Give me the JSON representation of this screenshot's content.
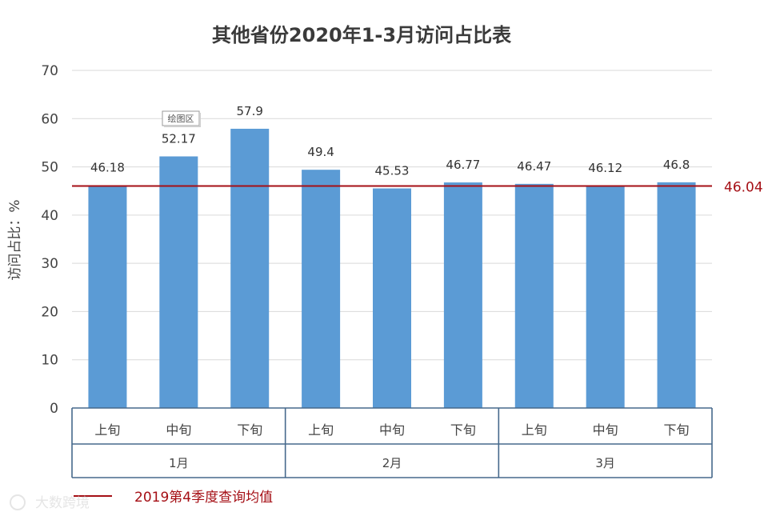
{
  "chart_data": {
    "type": "bar",
    "title": "其他省份2020年1-3月访问占比表",
    "ylabel": "访问占比：%",
    "ylim": [
      0,
      70
    ],
    "yticks": [
      0,
      10,
      20,
      30,
      40,
      50,
      60,
      70
    ],
    "grid": true,
    "groups": [
      {
        "label": "1月",
        "categories": [
          "上旬",
          "中旬",
          "下旬"
        ]
      },
      {
        "label": "2月",
        "categories": [
          "上旬",
          "中旬",
          "下旬"
        ]
      },
      {
        "label": "3月",
        "categories": [
          "上旬",
          "中旬",
          "下旬"
        ]
      }
    ],
    "values": [
      46.18,
      52.17,
      57.9,
      49.4,
      45.53,
      46.77,
      46.47,
      46.12,
      46.8
    ],
    "bar_color": "#5b9bd5",
    "reference_line": {
      "value": 46.04,
      "label": "46.04",
      "color": "#a50f15"
    },
    "legend": {
      "placement": "bottom-left",
      "label": "2019第4季度查询均值"
    },
    "tooltip": "绘图区"
  },
  "watermark": "大数跨境"
}
